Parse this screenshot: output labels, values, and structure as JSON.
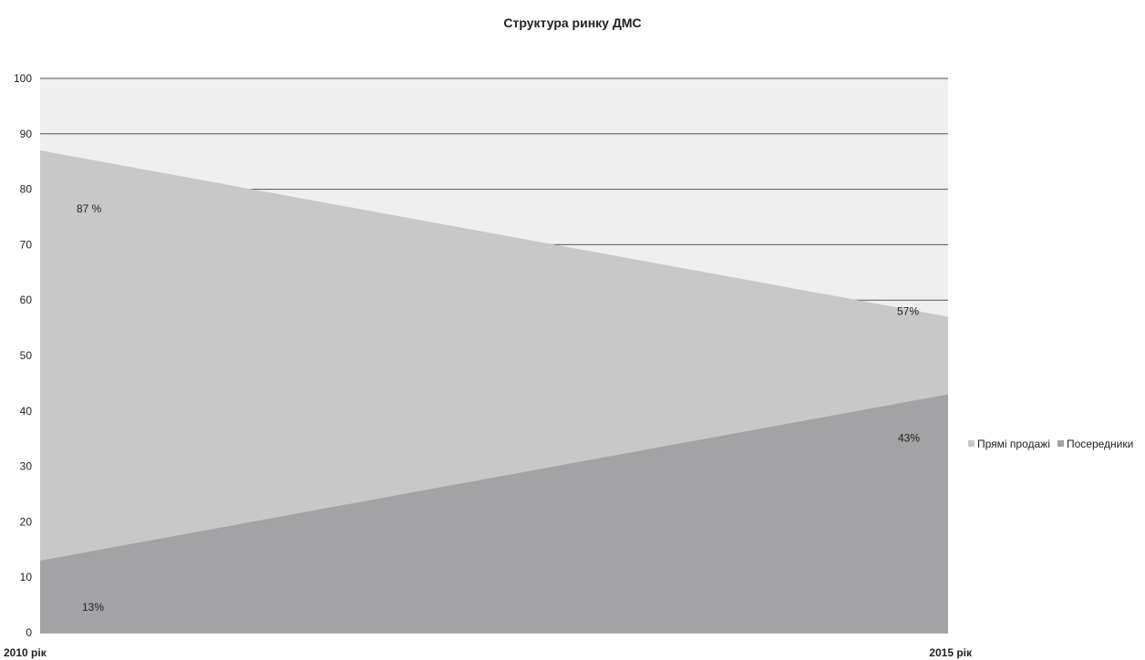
{
  "chart_data": {
    "type": "area",
    "title": "Структура ринку ДМС",
    "categories": [
      "2010 рік",
      "2015 рік"
    ],
    "series": [
      {
        "name": "Прямі продажі",
        "values": [
          87,
          57
        ],
        "labels": [
          "87 %",
          "57%"
        ],
        "color": "#c8c8c8"
      },
      {
        "name": "Посередники",
        "values": [
          13,
          43
        ],
        "labels": [
          "13%",
          "43%"
        ],
        "color": "#a3a3a5"
      }
    ],
    "ylim": [
      0,
      100
    ],
    "yticks": [
      0,
      10,
      20,
      30,
      40,
      50,
      60,
      70,
      80,
      90,
      100
    ],
    "grid": true,
    "legend_position": "right",
    "plot_background": "#efefef",
    "gridline_color": "#555555"
  }
}
